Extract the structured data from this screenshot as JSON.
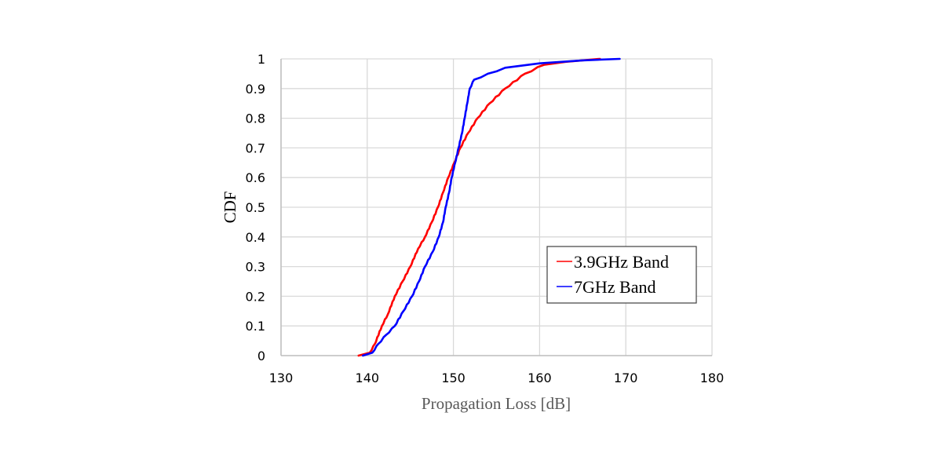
{
  "chart_data": {
    "type": "line",
    "title": "",
    "xlabel": "Propagation Loss  [dB]",
    "ylabel": "CDF",
    "xlim": [
      130,
      180
    ],
    "ylim": [
      0,
      1
    ],
    "xticks": [
      "130",
      "140",
      "150",
      "160",
      "170",
      "180"
    ],
    "yticks": [
      "0",
      "0.1",
      "0.2",
      "0.3",
      "0.4",
      "0.5",
      "0.6",
      "0.7",
      "0.8",
      "0.9",
      "1"
    ],
    "grid": true,
    "legend_position": "lower right (inside plot)",
    "series": [
      {
        "name": "3.9GHz Band",
        "color": "#ff0000",
        "x": [
          139.0,
          140.3,
          140.9,
          141.7,
          142.4,
          143.2,
          144.1,
          145.0,
          145.9,
          146.7,
          147.5,
          148.2,
          148.8,
          149.4,
          150.1,
          150.8,
          151.7,
          152.8,
          154.2,
          156.0,
          158.3,
          160.5,
          163.0,
          167.0
        ],
        "y": [
          0.0,
          0.01,
          0.04,
          0.1,
          0.14,
          0.2,
          0.25,
          0.3,
          0.36,
          0.4,
          0.45,
          0.5,
          0.55,
          0.6,
          0.65,
          0.7,
          0.75,
          0.8,
          0.85,
          0.9,
          0.95,
          0.98,
          0.99,
          1.0
        ]
      },
      {
        "name": "7GHz Band",
        "color": "#0000ff",
        "x": [
          139.5,
          140.6,
          141.3,
          142.2,
          143.2,
          144.2,
          145.2,
          146.0,
          146.7,
          147.6,
          148.3,
          148.8,
          149.1,
          149.5,
          149.8,
          150.2,
          150.6,
          151.0,
          151.3,
          151.6,
          151.9,
          152.4,
          154.0,
          156.0,
          160.0,
          165.0,
          169.3
        ],
        "y": [
          0.0,
          0.01,
          0.04,
          0.07,
          0.1,
          0.15,
          0.2,
          0.25,
          0.3,
          0.35,
          0.4,
          0.45,
          0.5,
          0.55,
          0.6,
          0.65,
          0.7,
          0.75,
          0.8,
          0.85,
          0.9,
          0.93,
          0.95,
          0.97,
          0.985,
          0.995,
          1.0
        ]
      }
    ]
  }
}
